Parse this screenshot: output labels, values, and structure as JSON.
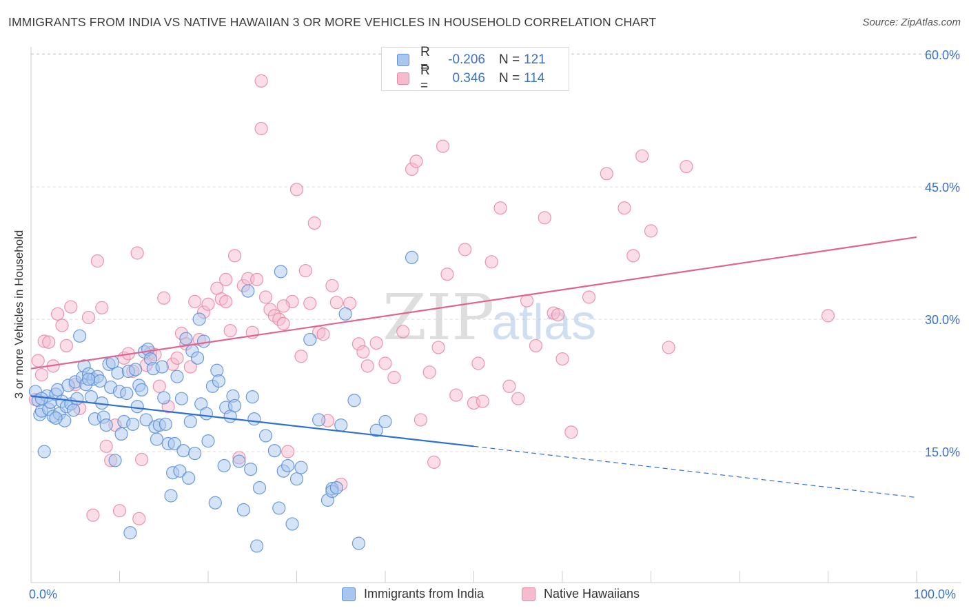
{
  "title": "IMMIGRANTS FROM INDIA VS NATIVE HAWAIIAN 3 OR MORE VEHICLES IN HOUSEHOLD CORRELATION CHART",
  "source": "Source: ZipAtlas.com",
  "watermark": {
    "zip": "ZIP",
    "atlas": "atlas"
  },
  "legend": {
    "india": {
      "r_label": "R =",
      "r_value": "-0.206",
      "n_label": "N =",
      "n_value": "121"
    },
    "hawaiian": {
      "r_label": "R =",
      "r_value": "0.346",
      "n_label": "N =",
      "n_value": "114"
    }
  },
  "colors": {
    "india_fill": "#a9c7ee",
    "india_stroke": "#5c8fd6",
    "india_line": "#2f6fcf",
    "hawaiian_fill": "#f6bccd",
    "hawaiian_stroke": "#e88aa6",
    "hawaiian_line": "#e0648f",
    "tick_text": "#3a72c4",
    "grid": "#d9d9d9"
  },
  "chart_data": {
    "type": "scatter",
    "title": "IMMIGRANTS FROM INDIA VS NATIVE HAWAIIAN 3 OR MORE VEHICLES IN HOUSEHOLD CORRELATION CHART",
    "xlabel": "",
    "ylabel": "3 or more Vehicles in Household",
    "xlim": [
      0,
      100
    ],
    "ylim": [
      0,
      62
    ],
    "x_tick_labels": [
      "0.0%",
      "100.0%"
    ],
    "y_ticks": [
      15,
      30,
      45,
      60
    ],
    "y_tick_labels": [
      "15.0%",
      "30.0%",
      "45.0%",
      "60.0%"
    ],
    "grid": true,
    "legend_position": "top-center",
    "series": [
      {
        "name": "Immigrants from India",
        "trend": {
          "x": [
            0,
            50,
            100
          ],
          "y": [
            21.3,
            15.6,
            9.8
          ],
          "solid_until": 50
        },
        "points": [
          [
            0.5,
            21.8
          ],
          [
            0.8,
            20.8
          ],
          [
            1,
            19.2
          ],
          [
            1.2,
            19.6
          ],
          [
            1.5,
            15.0
          ],
          [
            1.8,
            21.3
          ],
          [
            2,
            19.8
          ],
          [
            2.2,
            20.6
          ],
          [
            2.5,
            19.0
          ],
          [
            2.8,
            21.5
          ],
          [
            3,
            22.0
          ],
          [
            3.2,
            19.3
          ],
          [
            3.5,
            20.7
          ],
          [
            3.8,
            18.5
          ],
          [
            4,
            20.1
          ],
          [
            4.2,
            22.5
          ],
          [
            4.5,
            20.4
          ],
          [
            4.8,
            19.7
          ],
          [
            5,
            22.9
          ],
          [
            5.2,
            21.0
          ],
          [
            5.5,
            28.1
          ],
          [
            5.8,
            23.4
          ],
          [
            6,
            24.7
          ],
          [
            6.2,
            22.6
          ],
          [
            6.5,
            23.8
          ],
          [
            6.8,
            21.2
          ],
          [
            7,
            23.2
          ],
          [
            7.2,
            18.7
          ],
          [
            7.5,
            23.5
          ],
          [
            7.8,
            23.0
          ],
          [
            8,
            20.5
          ],
          [
            8.2,
            18.9
          ],
          [
            8.5,
            18.0
          ],
          [
            8.8,
            24.9
          ],
          [
            9,
            22.3
          ],
          [
            9.2,
            25.1
          ],
          [
            9.5,
            14.0
          ],
          [
            9.8,
            23.9
          ],
          [
            10,
            21.8
          ],
          [
            10.2,
            17.0
          ],
          [
            10.5,
            18.4
          ],
          [
            10.8,
            21.6
          ],
          [
            11,
            24.1
          ],
          [
            11.2,
            5.8
          ],
          [
            11.5,
            18.1
          ],
          [
            11.8,
            24.3
          ],
          [
            12,
            20.1
          ],
          [
            12.2,
            22.5
          ],
          [
            12.5,
            22.0
          ],
          [
            12.8,
            26.3
          ],
          [
            13,
            18.6
          ],
          [
            13.2,
            26.6
          ],
          [
            13.5,
            25.5
          ],
          [
            13.8,
            24.4
          ],
          [
            14,
            17.8
          ],
          [
            14.2,
            16.4
          ],
          [
            14.5,
            18.0
          ],
          [
            14.8,
            24.6
          ],
          [
            15,
            21.1
          ],
          [
            15.2,
            18.1
          ],
          [
            15.5,
            15.9
          ],
          [
            15.8,
            10.0
          ],
          [
            16,
            12.6
          ],
          [
            16.2,
            15.9
          ],
          [
            16.5,
            23.5
          ],
          [
            16.8,
            12.8
          ],
          [
            17,
            21.0
          ],
          [
            17.2,
            15.1
          ],
          [
            17.5,
            27.8
          ],
          [
            17.8,
            12.0
          ],
          [
            18,
            18.4
          ],
          [
            18.2,
            26.4
          ],
          [
            18.5,
            14.8
          ],
          [
            18.8,
            25.6
          ],
          [
            19,
            30.0
          ],
          [
            19.2,
            20.4
          ],
          [
            19.5,
            27.5
          ],
          [
            19.8,
            19.3
          ],
          [
            20,
            16.2
          ],
          [
            20.5,
            22.4
          ],
          [
            20.8,
            9.2
          ],
          [
            21,
            24.2
          ],
          [
            21.2,
            23.0
          ],
          [
            21.8,
            13.4
          ],
          [
            22,
            20.0
          ],
          [
            22.5,
            19.0
          ],
          [
            22.8,
            21.3
          ],
          [
            23,
            20.2
          ],
          [
            23.5,
            13.9
          ],
          [
            24,
            8.4
          ],
          [
            24.5,
            33.2
          ],
          [
            24.8,
            13.0
          ],
          [
            25,
            21.2
          ],
          [
            25.2,
            18.7
          ],
          [
            25.5,
            4.3
          ],
          [
            25.8,
            10.9
          ],
          [
            26.5,
            16.8
          ],
          [
            27.5,
            15.1
          ],
          [
            28,
            8.6
          ],
          [
            28.2,
            35.4
          ],
          [
            28.5,
            12.8
          ],
          [
            29,
            13.4
          ],
          [
            29.5,
            6.8
          ],
          [
            30,
            11.9
          ],
          [
            30.5,
            13.2
          ],
          [
            31.5,
            27.7
          ],
          [
            32.5,
            18.6
          ],
          [
            33.5,
            9.5
          ],
          [
            34,
            10.8
          ],
          [
            34,
            10.5
          ],
          [
            34.5,
            10.9
          ],
          [
            35,
            18.0
          ],
          [
            35.5,
            30.6
          ],
          [
            36.5,
            20.8
          ],
          [
            37,
            4.6
          ],
          [
            39,
            17.4
          ],
          [
            40,
            18.4
          ],
          [
            43,
            37.0
          ],
          [
            1.2,
            21.0
          ],
          [
            2.8,
            18.8
          ],
          [
            6.5,
            23.2
          ]
        ]
      },
      {
        "name": "Native Hawaiians",
        "trend": {
          "x": [
            0,
            100
          ],
          "y": [
            24.4,
            39.3
          ]
        },
        "points": [
          [
            0.5,
            20.9
          ],
          [
            0.8,
            25.3
          ],
          [
            1.2,
            23.7
          ],
          [
            1.5,
            27.5
          ],
          [
            2,
            27.4
          ],
          [
            2.5,
            24.7
          ],
          [
            3,
            30.6
          ],
          [
            3.5,
            29.3
          ],
          [
            4,
            27.0
          ],
          [
            4.5,
            31.4
          ],
          [
            5,
            22.6
          ],
          [
            5.5,
            19.9
          ],
          [
            6.5,
            30.2
          ],
          [
            7,
            7.8
          ],
          [
            7.5,
            36.6
          ],
          [
            8,
            31.3
          ],
          [
            8.5,
            15.6
          ],
          [
            9,
            14.0
          ],
          [
            9.5,
            18.0
          ],
          [
            10,
            8.3
          ],
          [
            10.5,
            25.6
          ],
          [
            11,
            26.1
          ],
          [
            11.5,
            24.1
          ],
          [
            12,
            37.5
          ],
          [
            12.2,
            7.4
          ],
          [
            12.5,
            14.1
          ],
          [
            13,
            24.8
          ],
          [
            13.5,
            26.2
          ],
          [
            14,
            26.0
          ],
          [
            14.5,
            22.4
          ],
          [
            15,
            32.4
          ],
          [
            15.5,
            20.1
          ],
          [
            16,
            24.9
          ],
          [
            16.5,
            25.6
          ],
          [
            17,
            28.4
          ],
          [
            17.5,
            27.2
          ],
          [
            18,
            24.6
          ],
          [
            18.5,
            32.0
          ],
          [
            19,
            27.7
          ],
          [
            19.5,
            30.8
          ],
          [
            20,
            31.7
          ],
          [
            21,
            33.5
          ],
          [
            21.5,
            32.3
          ],
          [
            22,
            34.5
          ],
          [
            22.5,
            28.7
          ],
          [
            23,
            37.2
          ],
          [
            23.5,
            14.3
          ],
          [
            24,
            33.8
          ],
          [
            24.5,
            34.6
          ],
          [
            25,
            28.5
          ],
          [
            25.5,
            34.5
          ],
          [
            26,
            51.6
          ],
          [
            26.5,
            32.5
          ],
          [
            27,
            31.1
          ],
          [
            27.5,
            30.4
          ],
          [
            28,
            30.0
          ],
          [
            28.5,
            29.5
          ],
          [
            29,
            15.0
          ],
          [
            29.5,
            32.0
          ],
          [
            30,
            44.7
          ],
          [
            30.5,
            25.8
          ],
          [
            31,
            35.5
          ],
          [
            31.5,
            31.8
          ],
          [
            32,
            40.9
          ],
          [
            32.5,
            28.5
          ],
          [
            33,
            28.3
          ],
          [
            33.5,
            18.5
          ],
          [
            34,
            33.8
          ],
          [
            34.5,
            31.9
          ],
          [
            35,
            11.3
          ],
          [
            36,
            31.8
          ],
          [
            37,
            27.2
          ],
          [
            37.5,
            26.3
          ],
          [
            38,
            24.7
          ],
          [
            39,
            27.3
          ],
          [
            40,
            25.0
          ],
          [
            41,
            23.4
          ],
          [
            42,
            28.6
          ],
          [
            43,
            47.0
          ],
          [
            43.5,
            47.9
          ],
          [
            44,
            18.6
          ],
          [
            45,
            24.0
          ],
          [
            45.5,
            13.8
          ],
          [
            46,
            26.8
          ],
          [
            46.5,
            49.6
          ],
          [
            47,
            35.1
          ],
          [
            48,
            21.4
          ],
          [
            49,
            37.9
          ],
          [
            50,
            20.5
          ],
          [
            50.5,
            25.0
          ],
          [
            51,
            20.7
          ],
          [
            52,
            36.5
          ],
          [
            53,
            42.6
          ],
          [
            54,
            22.4
          ],
          [
            55,
            21.0
          ],
          [
            56,
            32.1
          ],
          [
            57,
            27.0
          ],
          [
            58,
            41.5
          ],
          [
            59,
            30.7
          ],
          [
            60,
            25.5
          ],
          [
            61,
            17.2
          ],
          [
            63,
            32.5
          ],
          [
            65,
            46.5
          ],
          [
            67,
            42.6
          ],
          [
            68,
            37.2
          ],
          [
            69,
            48.5
          ],
          [
            70,
            40.0
          ],
          [
            72,
            26.8
          ],
          [
            74,
            47.3
          ],
          [
            90,
            30.4
          ],
          [
            59.5,
            30.5
          ],
          [
            26,
            57.0
          ],
          [
            22,
            32.0
          ],
          [
            28.5,
            31.5
          ]
        ]
      }
    ]
  },
  "bottom_legend": {
    "india": "Immigrants from India",
    "hawaiian": "Native Hawaiians"
  }
}
